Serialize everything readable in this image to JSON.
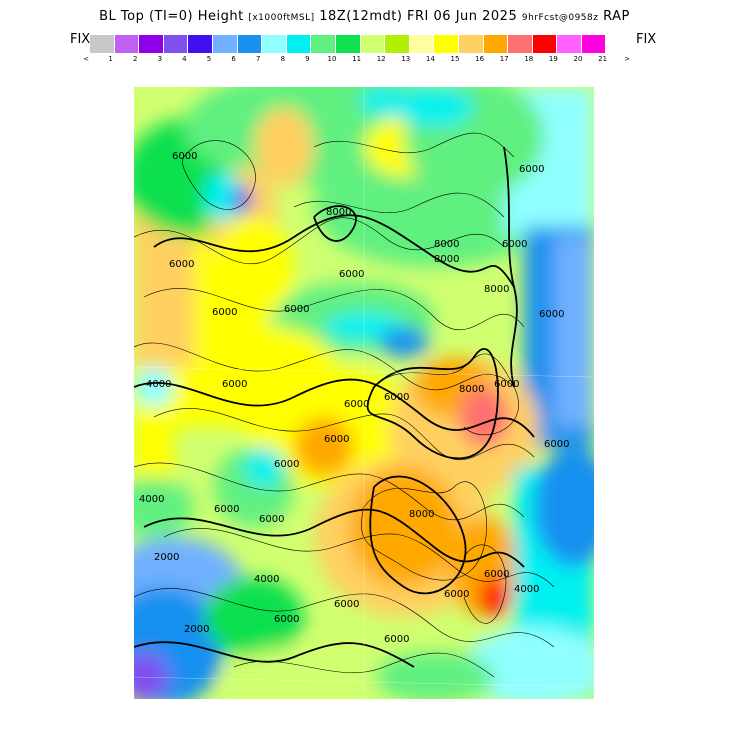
{
  "header": {
    "title_main": "BL Top (TI=0) Height",
    "units": "[x1000ftMSL]",
    "valid": "18Z(12mdt) FRI 06 Jun 2025",
    "fcst": "9hrFcst@0958z",
    "model": "RAP"
  },
  "colorbar": {
    "fix_left": "FIX",
    "fix_right": "FIX",
    "colors": [
      "#c8c8c8",
      "#c060f0",
      "#9000e8",
      "#8050f0",
      "#4010f0",
      "#70b0ff",
      "#1890f0",
      "#90ffff",
      "#00f0f0",
      "#60f080",
      "#10e050",
      "#d0ff70",
      "#b0f000",
      "#ffffa0",
      "#ffff00",
      "#ffd060",
      "#ffa800",
      "#ff7070",
      "#ff0000",
      "#ff60ff",
      "#ff00e0"
    ],
    "tick_labels": [
      "<",
      "1",
      "2",
      "3",
      "4",
      "5",
      "6",
      "7",
      "8",
      "9",
      "10",
      "11",
      "12",
      "13",
      "14",
      "15",
      "16",
      "17",
      "18",
      "19",
      "20",
      "21",
      ">"
    ]
  },
  "map": {
    "contour_labels": [
      "6000",
      "6000",
      "6000",
      "6000",
      "8000",
      "8000",
      "8000",
      "6000",
      "6000",
      "6000",
      "6000",
      "8000",
      "4000",
      "6000",
      "6000",
      "6000",
      "6000",
      "8000",
      "6000",
      "6000",
      "6000",
      "6000",
      "4000",
      "6000",
      "8000",
      "6000",
      "6000",
      "2000",
      "4000",
      "6000",
      "6000",
      "2000",
      "4000",
      "6000"
    ]
  }
}
